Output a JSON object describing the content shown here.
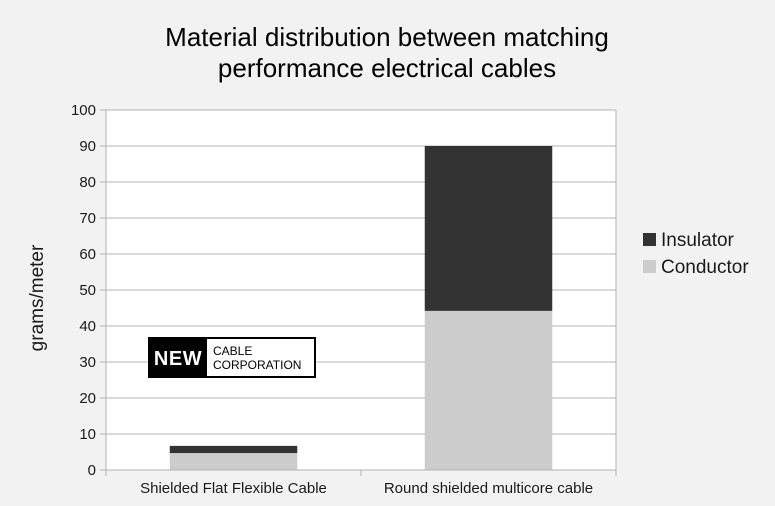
{
  "chart_data": {
    "type": "bar",
    "stacked": true,
    "title": [
      "Material distribution between matching",
      "performance electrical cables"
    ],
    "ylabel": "grams/meter",
    "xlabel": "",
    "ylim": [
      0,
      100
    ],
    "yticks": [
      0,
      10,
      20,
      30,
      40,
      50,
      60,
      70,
      80,
      90,
      100
    ],
    "grid": true,
    "legend_position": "right",
    "categories": [
      "Shielded Flat Flexible Cable",
      "Round shielded multicore cable"
    ],
    "series": [
      {
        "name": "Conductor",
        "values": [
          4.7,
          44.2
        ],
        "color": "#cccccc"
      },
      {
        "name": "Insulator",
        "values": [
          2.0,
          45.8
        ],
        "color": "#333333"
      }
    ]
  },
  "logo": {
    "word": "NEW",
    "line1": "CABLE",
    "line2": "CORPORATION"
  }
}
